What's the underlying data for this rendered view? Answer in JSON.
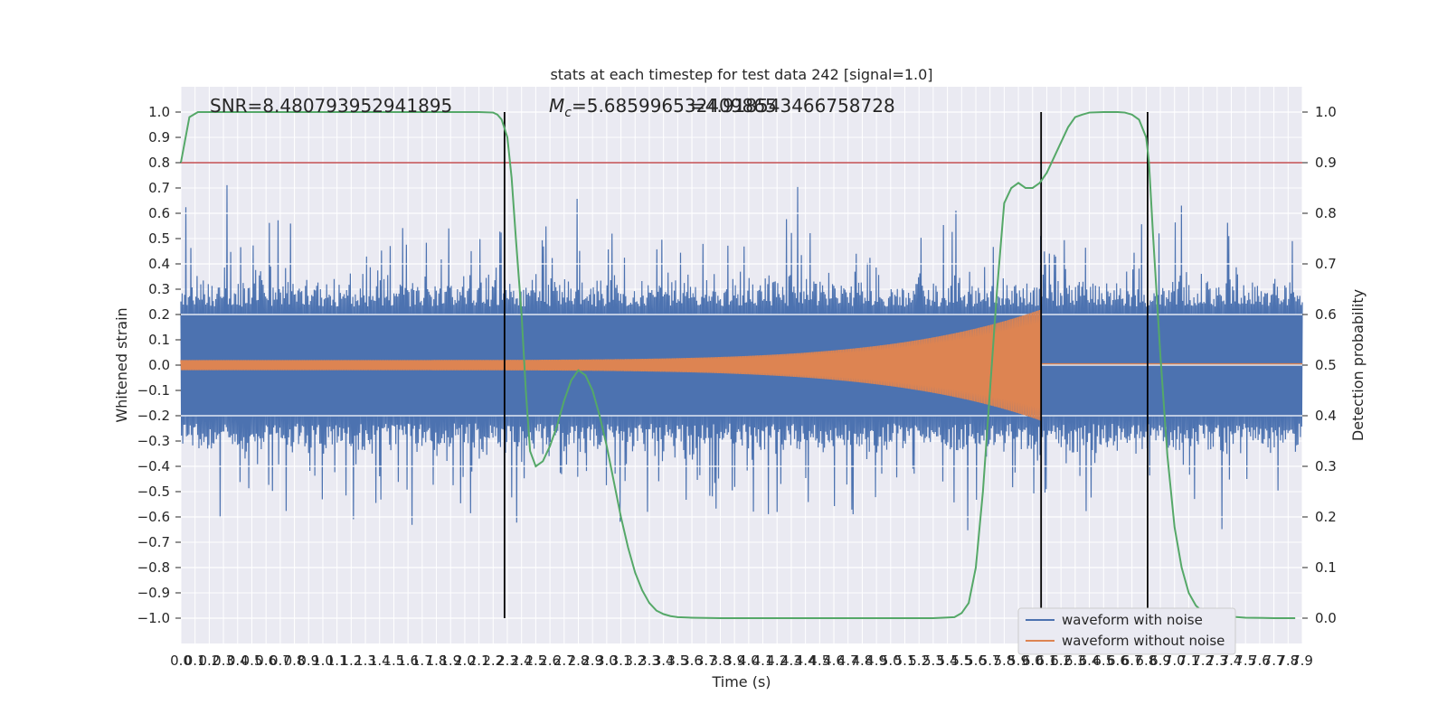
{
  "chart_data": {
    "type": "line",
    "title": "stats at each timestep for test data 242 [signal=1.0]",
    "xlabel": "Time (s)",
    "ylabel_left": "Whitened strain",
    "ylabel_right": "Detection probability",
    "xlim": [
      0.0,
      7.9
    ],
    "ylim_left": [
      -1.1,
      1.1
    ],
    "ylim_right": [
      -0.05,
      1.05
    ],
    "x_ticks": [
      "0.0",
      "0.1",
      "0.2",
      "0.3",
      "0.4",
      "0.5",
      "0.6",
      "0.7",
      "0.8",
      "0.9",
      "1.0",
      "1.1",
      "1.2",
      "1.3",
      "1.4",
      "1.5",
      "1.6",
      "1.7",
      "1.8",
      "1.9",
      "2.0",
      "2.1",
      "2.2",
      "2.3",
      "2.4",
      "2.5",
      "2.6",
      "2.7",
      "2.8",
      "2.9",
      "3.0",
      "3.1",
      "3.2",
      "3.3",
      "3.4",
      "3.5",
      "3.6",
      "3.7",
      "3.8",
      "3.9",
      "4.0",
      "4.1",
      "4.2",
      "4.3",
      "4.4",
      "4.5",
      "4.6",
      "4.7",
      "4.8",
      "4.9",
      "5.0",
      "5.1",
      "5.2",
      "5.3",
      "5.4",
      "5.5",
      "5.6",
      "5.7",
      "5.8",
      "5.9",
      "6.0",
      "6.1",
      "6.2",
      "6.3",
      "6.4",
      "6.5",
      "6.6",
      "6.7",
      "6.8",
      "6.9",
      "7.0",
      "7.1",
      "7.2",
      "7.3",
      "7.4",
      "7.5",
      "7.6",
      "7.7",
      "7.8",
      "7.9"
    ],
    "y_ticks_left": [
      "−1.0",
      "−0.9",
      "−0.8",
      "−0.7",
      "−0.6",
      "−0.5",
      "−0.4",
      "−0.3",
      "−0.2",
      "−0.1",
      "0.0",
      "0.1",
      "0.2",
      "0.3",
      "0.4",
      "0.5",
      "0.6",
      "0.7",
      "0.8",
      "0.9",
      "1.0"
    ],
    "y_ticks_right": [
      "0.0",
      "0.1",
      "0.2",
      "0.3",
      "0.4",
      "0.5",
      "0.6",
      "0.7",
      "0.8",
      "0.9",
      "1.0"
    ],
    "annotations": {
      "snr": "SNR=8.480793952941895",
      "mc_label": "M",
      "mc_sub": "c",
      "mc_value": "=5.685996532409865",
      "mc_overlap": "=4.918543466758728"
    },
    "threshold": {
      "value": 0.9,
      "axis": "right",
      "color": "#c44e52"
    },
    "event_lines": [
      2.28,
      6.06,
      6.81
    ],
    "event_line_range": [
      -1.0,
      1.0
    ],
    "series": [
      {
        "name": "waveform with noise",
        "color": "#4c72b0",
        "axis": "left",
        "envelope": {
          "median_amplitude": 0.42,
          "peak_max": 0.98,
          "peak_min": -0.98
        }
      },
      {
        "name": "waveform without noise",
        "color": "#dd8452",
        "axis": "left",
        "chirp": {
          "start": 0.0,
          "merger": 6.06,
          "amp_start": 0.02,
          "amp_peak": 0.22,
          "ringdown_level": 0.005
        }
      },
      {
        "axis": "right",
        "color": "#55a868",
        "x": [
          0.0,
          0.06,
          0.12,
          0.3,
          0.6,
          1.0,
          1.5,
          2.0,
          2.1,
          2.2,
          2.23,
          2.26,
          2.3,
          2.33,
          2.36,
          2.4,
          2.43,
          2.46,
          2.5,
          2.55,
          2.6,
          2.65,
          2.7,
          2.75,
          2.8,
          2.85,
          2.9,
          2.95,
          3.0,
          3.05,
          3.1,
          3.15,
          3.2,
          3.25,
          3.3,
          3.35,
          3.4,
          3.45,
          3.5,
          3.6,
          3.8,
          4.0,
          4.5,
          5.0,
          5.3,
          5.45,
          5.5,
          5.55,
          5.6,
          5.65,
          5.7,
          5.75,
          5.8,
          5.85,
          5.9,
          5.95,
          6.0,
          6.05,
          6.1,
          6.15,
          6.2,
          6.25,
          6.3,
          6.35,
          6.4,
          6.5,
          6.6,
          6.65,
          6.7,
          6.75,
          6.8,
          6.82,
          6.85,
          6.9,
          6.95,
          7.0,
          7.05,
          7.1,
          7.15,
          7.2,
          7.3,
          7.5,
          7.7,
          7.85
        ],
        "y": [
          0.9,
          0.99,
          1.0,
          1.0,
          1.0,
          1.0,
          1.0,
          1.0,
          1.0,
          0.999,
          0.995,
          0.985,
          0.95,
          0.87,
          0.75,
          0.6,
          0.45,
          0.33,
          0.3,
          0.31,
          0.34,
          0.38,
          0.43,
          0.47,
          0.49,
          0.48,
          0.45,
          0.4,
          0.34,
          0.27,
          0.2,
          0.14,
          0.09,
          0.055,
          0.03,
          0.015,
          0.008,
          0.004,
          0.002,
          0.001,
          0.0,
          0.0,
          0.0,
          0.0,
          0.0,
          0.002,
          0.01,
          0.03,
          0.1,
          0.25,
          0.45,
          0.65,
          0.82,
          0.85,
          0.86,
          0.85,
          0.85,
          0.86,
          0.88,
          0.91,
          0.94,
          0.97,
          0.99,
          0.995,
          0.999,
          1.0,
          1.0,
          0.999,
          0.995,
          0.985,
          0.95,
          0.9,
          0.75,
          0.52,
          0.32,
          0.18,
          0.1,
          0.05,
          0.025,
          0.012,
          0.005,
          0.001,
          0.0,
          0.0
        ]
      }
    ]
  }
}
